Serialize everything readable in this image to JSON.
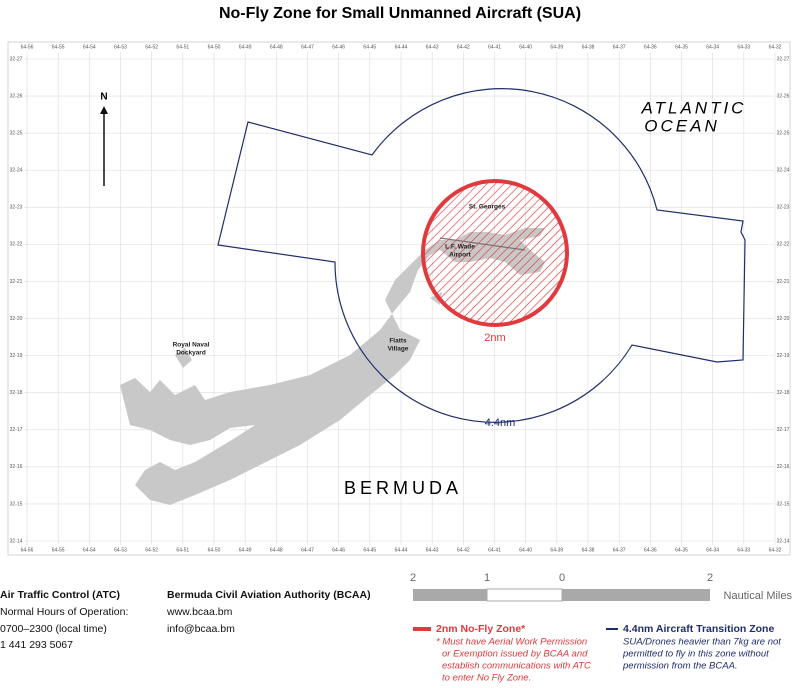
{
  "header": {
    "title": "No-Fly Zone for Small Unmanned Aircraft (SUA)"
  },
  "grid": {
    "longitudes": [
      "64-56",
      "64-55",
      "64-54",
      "64-53",
      "64-52",
      "64-51",
      "64-50",
      "64-49",
      "64-48",
      "64-47",
      "64-46",
      "64-45",
      "64-44",
      "64-43",
      "64-42",
      "64-41",
      "64-40",
      "64-39",
      "64-38",
      "64-37",
      "64-36",
      "64-35",
      "64-34",
      "64-33",
      "64-32"
    ],
    "latitudes": [
      "32-27",
      "32-26",
      "32-25",
      "32-24",
      "32-23",
      "32-22",
      "32-21",
      "32-20",
      "32-19",
      "32-18",
      "32-17",
      "32-16",
      "32-15",
      "32-14"
    ]
  },
  "map": {
    "ocean": [
      "ATLANTIC",
      "OCEAN"
    ],
    "island": "BERMUDA",
    "north": "N",
    "places": [
      "St. Georges",
      "L.F. Wade",
      "Airport",
      "Royal Naval",
      "Dockyard",
      "Flatts",
      "Village"
    ],
    "inner_radius": "2nm",
    "outer_radius": "4.4nm"
  },
  "scale": {
    "labels": [
      "2",
      "1",
      "0",
      "2"
    ],
    "unit": "Nautical Miles"
  },
  "atc": {
    "title": "Air Traffic Control (ATC)",
    "lines": [
      "Normal Hours of Operation:",
      "0700–2300 (local time)",
      "1 441 293 5067"
    ]
  },
  "bcaa": {
    "title": "Bermuda Civil Aviation Authority (BCAA)",
    "lines": [
      "www.bcaa.bm",
      "info@bcaa.bm"
    ]
  },
  "legend": {
    "no_fly": {
      "title": "2nm No-Fly Zone*",
      "note": [
        "* Must have Aerial Work Permission",
        "or Exemption issued by BCAA and",
        "establish communications with ATC",
        "to enter No Fly Zone."
      ]
    },
    "transition": {
      "title": "4.4nm Aircraft Transition Zone",
      "note": [
        "SUA/Drones heavier than 7kg are not",
        "permitted to fly in this zone without",
        "permission from the BCAA."
      ]
    }
  }
}
